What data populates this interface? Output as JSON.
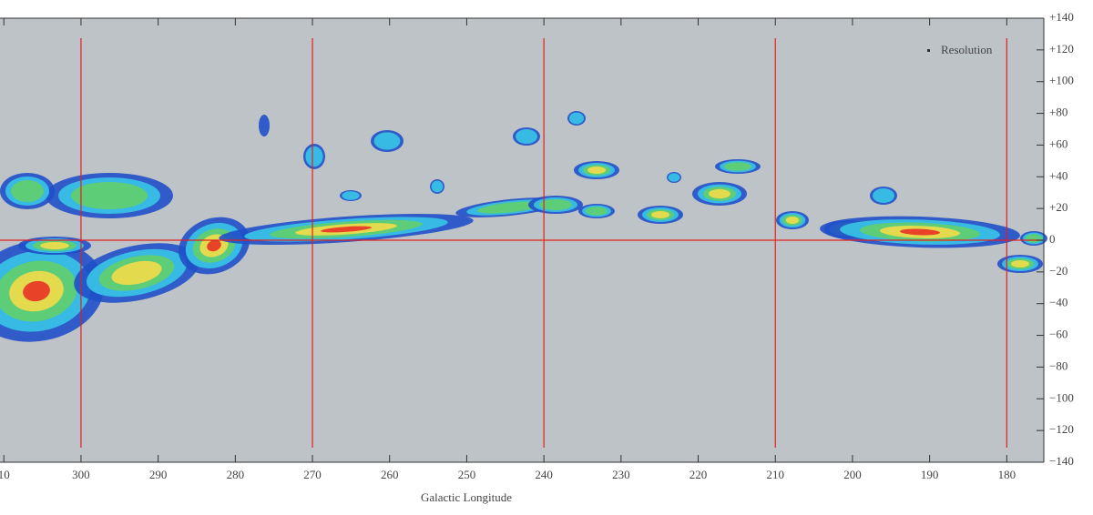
{
  "chart_data": {
    "type": "contour",
    "x_label": "Galactic Longitude",
    "legend": "Resolution",
    "xlim": [
      310.5,
      175.2
    ],
    "xticks": [
      {
        "value": 310,
        "label": "10"
      },
      300,
      290,
      280,
      270,
      260,
      250,
      240,
      230,
      220,
      210,
      200,
      190,
      180
    ],
    "ylim": [
      -140,
      140
    ],
    "yticks": [
      {
        "value": 140,
        "label": "+140"
      },
      {
        "value": 120,
        "label": "+120"
      },
      {
        "value": 100,
        "label": "+100"
      },
      {
        "value": 80,
        "label": "+80"
      },
      {
        "value": 60,
        "label": "+60"
      },
      {
        "value": 40,
        "label": "+40"
      },
      {
        "value": 20,
        "label": "+20"
      },
      0,
      {
        "value": -20,
        "label": "−20"
      },
      {
        "value": -40,
        "label": "−40"
      },
      {
        "value": -60,
        "label": "−60"
      },
      {
        "value": -80,
        "label": "−80"
      },
      {
        "value": -100,
        "label": "−100"
      },
      {
        "value": -120,
        "label": "−120"
      },
      {
        "value": -140,
        "label": "−140"
      }
    ],
    "reference_lines": {
      "x": [
        300,
        270,
        240,
        210,
        180
      ],
      "y": [
        0
      ],
      "color": "#e02020"
    }
  }
}
